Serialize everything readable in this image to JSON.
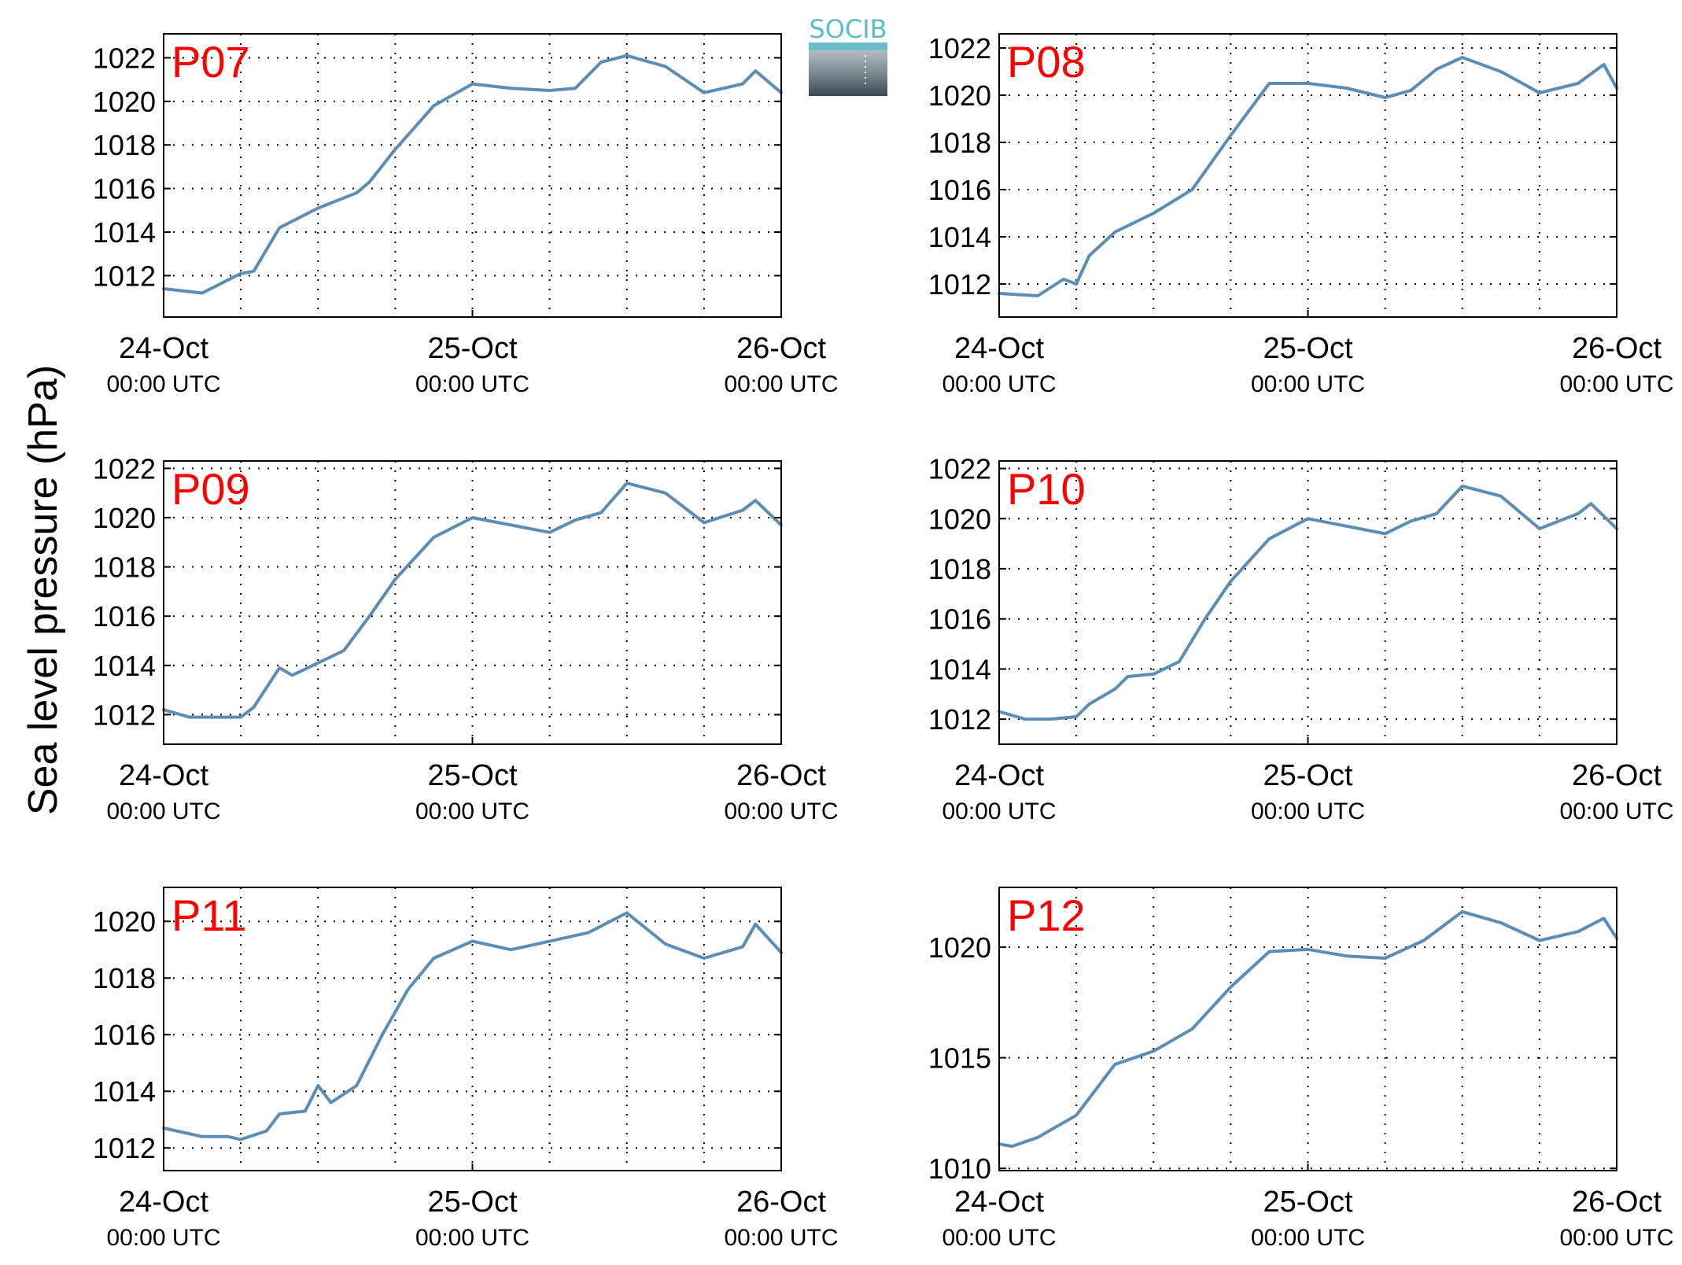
{
  "figure": {
    "ylabel": "Sea level pressure (hPa)",
    "logo_text": "SOCIB",
    "x_tick_labels": [
      {
        "date": "24-Oct",
        "time": "00:00 UTC"
      },
      {
        "date": "25-Oct",
        "time": "00:00 UTC"
      },
      {
        "date": "26-Oct",
        "time": "00:00 UTC"
      }
    ]
  },
  "colors": {
    "line": "#5b8db5",
    "station_label": "#ff0000",
    "axes": "#000000",
    "grid": "#000000"
  },
  "chart_data": [
    {
      "type": "line",
      "station": "P07",
      "xlim": [
        "24-Oct 00:00",
        "26-Oct 00:00"
      ],
      "ylim": [
        1010.1,
        1023.1
      ],
      "yticks": [
        1012,
        1014,
        1016,
        1018,
        1020,
        1022
      ],
      "grid": true,
      "x": [
        "24-Oct 00:00",
        "24-Oct 03:00",
        "24-Oct 05:00",
        "24-Oct 06:00",
        "24-Oct 07:00",
        "24-Oct 09:00",
        "24-Oct 12:00",
        "24-Oct 15:00",
        "24-Oct 16:00",
        "24-Oct 18:00",
        "24-Oct 21:00",
        "25-Oct 00:00",
        "25-Oct 03:00",
        "25-Oct 06:00",
        "25-Oct 08:00",
        "25-Oct 10:00",
        "25-Oct 12:00",
        "25-Oct 15:00",
        "25-Oct 18:00",
        "25-Oct 21:00",
        "25-Oct 22:00",
        "26-Oct 00:00"
      ],
      "values": [
        1011.4,
        1011.2,
        1011.8,
        1012.1,
        1012.2,
        1014.2,
        1015.1,
        1015.8,
        1016.3,
        1017.8,
        1019.8,
        1020.8,
        1020.6,
        1020.5,
        1020.6,
        1021.8,
        1022.1,
        1021.6,
        1020.4,
        1020.8,
        1021.4,
        1020.4
      ]
    },
    {
      "type": "line",
      "station": "P08",
      "xlim": [
        "24-Oct 00:00",
        "26-Oct 00:00"
      ],
      "ylim": [
        1010.6,
        1022.6
      ],
      "yticks": [
        1012,
        1014,
        1016,
        1018,
        1020,
        1022
      ],
      "grid": true,
      "x": [
        "24-Oct 00:00",
        "24-Oct 03:00",
        "24-Oct 05:00",
        "24-Oct 06:00",
        "24-Oct 07:00",
        "24-Oct 09:00",
        "24-Oct 12:00",
        "24-Oct 15:00",
        "24-Oct 18:00",
        "24-Oct 21:00",
        "25-Oct 00:00",
        "25-Oct 03:00",
        "25-Oct 06:00",
        "25-Oct 08:00",
        "25-Oct 10:00",
        "25-Oct 12:00",
        "25-Oct 15:00",
        "25-Oct 18:00",
        "25-Oct 21:00",
        "25-Oct 23:00",
        "26-Oct 00:00"
      ],
      "values": [
        1011.6,
        1011.5,
        1012.2,
        1012.0,
        1013.2,
        1014.2,
        1015.0,
        1016.0,
        1018.3,
        1020.5,
        1020.5,
        1020.3,
        1019.9,
        1020.2,
        1021.1,
        1021.6,
        1021.0,
        1020.1,
        1020.5,
        1021.3,
        1020.3
      ]
    },
    {
      "type": "line",
      "station": "P09",
      "xlim": [
        "24-Oct 00:00",
        "26-Oct 00:00"
      ],
      "ylim": [
        1010.8,
        1022.3
      ],
      "yticks": [
        1012,
        1014,
        1016,
        1018,
        1020,
        1022
      ],
      "grid": true,
      "x": [
        "24-Oct 00:00",
        "24-Oct 02:00",
        "24-Oct 04:00",
        "24-Oct 06:00",
        "24-Oct 07:00",
        "24-Oct 09:00",
        "24-Oct 10:00",
        "24-Oct 12:00",
        "24-Oct 14:00",
        "24-Oct 16:00",
        "24-Oct 18:00",
        "24-Oct 21:00",
        "25-Oct 00:00",
        "25-Oct 03:00",
        "25-Oct 06:00",
        "25-Oct 08:00",
        "25-Oct 10:00",
        "25-Oct 12:00",
        "25-Oct 15:00",
        "25-Oct 18:00",
        "25-Oct 21:00",
        "25-Oct 22:00",
        "26-Oct 00:00"
      ],
      "values": [
        1012.2,
        1011.9,
        1011.9,
        1011.9,
        1012.3,
        1013.9,
        1013.6,
        1014.1,
        1014.6,
        1016.0,
        1017.5,
        1019.2,
        1020.0,
        1019.7,
        1019.4,
        1019.9,
        1020.2,
        1021.4,
        1021.0,
        1019.8,
        1020.3,
        1020.7,
        1019.7
      ]
    },
    {
      "type": "line",
      "station": "P10",
      "xlim": [
        "24-Oct 00:00",
        "26-Oct 00:00"
      ],
      "ylim": [
        1011.0,
        1022.3
      ],
      "yticks": [
        1012,
        1014,
        1016,
        1018,
        1020,
        1022
      ],
      "grid": true,
      "x": [
        "24-Oct 00:00",
        "24-Oct 02:00",
        "24-Oct 04:00",
        "24-Oct 06:00",
        "24-Oct 07:00",
        "24-Oct 09:00",
        "24-Oct 10:00",
        "24-Oct 12:00",
        "24-Oct 14:00",
        "24-Oct 16:00",
        "24-Oct 18:00",
        "24-Oct 21:00",
        "25-Oct 00:00",
        "25-Oct 03:00",
        "25-Oct 06:00",
        "25-Oct 08:00",
        "25-Oct 10:00",
        "25-Oct 12:00",
        "25-Oct 15:00",
        "25-Oct 18:00",
        "25-Oct 21:00",
        "25-Oct 22:00",
        "26-Oct 00:00"
      ],
      "values": [
        1012.3,
        1012.0,
        1012.0,
        1012.1,
        1012.6,
        1013.2,
        1013.7,
        1013.8,
        1014.3,
        1016.0,
        1017.5,
        1019.2,
        1020.0,
        1019.7,
        1019.4,
        1019.9,
        1020.2,
        1021.3,
        1020.9,
        1019.6,
        1020.2,
        1020.6,
        1019.6
      ]
    },
    {
      "type": "line",
      "station": "P11",
      "xlim": [
        "24-Oct 00:00",
        "26-Oct 00:00"
      ],
      "ylim": [
        1011.2,
        1021.2
      ],
      "yticks": [
        1012,
        1014,
        1016,
        1018,
        1020
      ],
      "grid": true,
      "x": [
        "24-Oct 00:00",
        "24-Oct 03:00",
        "24-Oct 05:00",
        "24-Oct 06:00",
        "24-Oct 08:00",
        "24-Oct 09:00",
        "24-Oct 11:00",
        "24-Oct 12:00",
        "24-Oct 13:00",
        "24-Oct 15:00",
        "24-Oct 17:00",
        "24-Oct 19:00",
        "24-Oct 21:00",
        "25-Oct 00:00",
        "25-Oct 03:00",
        "25-Oct 06:00",
        "25-Oct 09:00",
        "25-Oct 12:00",
        "25-Oct 15:00",
        "25-Oct 18:00",
        "25-Oct 21:00",
        "25-Oct 22:00",
        "26-Oct 00:00"
      ],
      "values": [
        1012.7,
        1012.4,
        1012.4,
        1012.3,
        1012.6,
        1013.2,
        1013.3,
        1014.2,
        1013.6,
        1014.2,
        1016.0,
        1017.6,
        1018.7,
        1019.3,
        1019.0,
        1019.3,
        1019.6,
        1020.3,
        1019.2,
        1018.7,
        1019.1,
        1019.9,
        1018.9
      ]
    },
    {
      "type": "line",
      "station": "P12",
      "xlim": [
        "24-Oct 00:00",
        "26-Oct 00:00"
      ],
      "ylim": [
        1009.9,
        1022.7
      ],
      "yticks": [
        1010,
        1015,
        1020
      ],
      "grid": true,
      "x": [
        "24-Oct 00:00",
        "24-Oct 01:00",
        "24-Oct 03:00",
        "24-Oct 06:00",
        "24-Oct 09:00",
        "24-Oct 12:00",
        "24-Oct 15:00",
        "24-Oct 18:00",
        "24-Oct 21:00",
        "25-Oct 00:00",
        "25-Oct 03:00",
        "25-Oct 06:00",
        "25-Oct 09:00",
        "25-Oct 12:00",
        "25-Oct 15:00",
        "25-Oct 18:00",
        "25-Oct 21:00",
        "25-Oct 23:00",
        "26-Oct 00:00"
      ],
      "values": [
        1011.1,
        1011.0,
        1011.4,
        1012.4,
        1014.7,
        1015.3,
        1016.3,
        1018.2,
        1019.8,
        1019.9,
        1019.6,
        1019.5,
        1020.3,
        1021.6,
        1021.1,
        1020.3,
        1020.7,
        1021.3,
        1020.4
      ]
    }
  ]
}
